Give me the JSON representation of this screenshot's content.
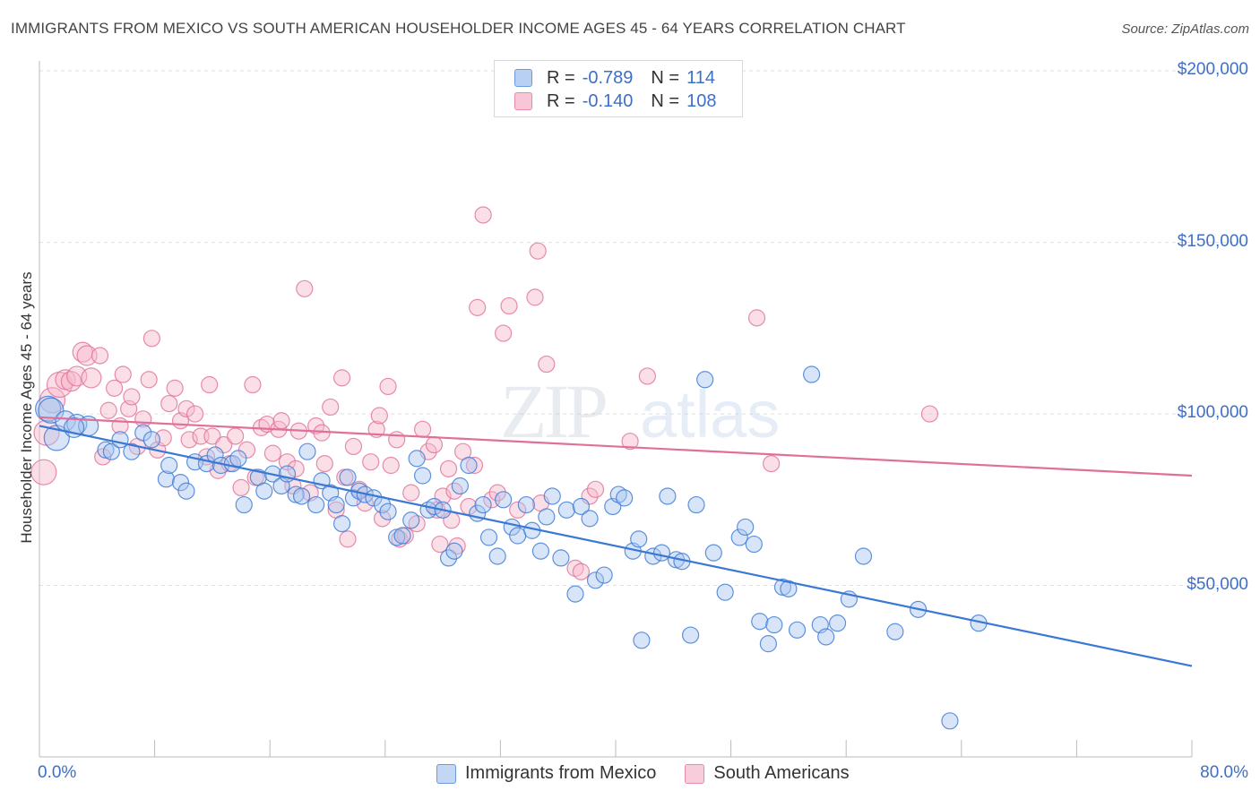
{
  "header": {
    "title": "IMMIGRANTS FROM MEXICO VS SOUTH AMERICAN HOUSEHOLDER INCOME AGES 45 - 64 YEARS CORRELATION CHART",
    "source": "Source: ZipAtlas.com"
  },
  "watermark": {
    "zip": "ZIP",
    "atlas": "atlas"
  },
  "legend": {
    "rows": [
      {
        "r_label": "R =",
        "r_value": "-0.789",
        "n_label": "N =",
        "n_value": "114",
        "color": "#a9c6f0",
        "border": "#6c9ade"
      },
      {
        "r_label": "R =",
        "r_value": "-0.140",
        "n_label": "N =",
        "n_value": "108",
        "color": "#f6b8ca",
        "border": "#e88aa8"
      }
    ]
  },
  "bottom_legend": [
    {
      "label": "Immigrants from Mexico",
      "color": "#c3d6f3",
      "border": "#6c9ade"
    },
    {
      "label": "South Americans",
      "color": "#f8cddb",
      "border": "#e88aa8"
    }
  ],
  "colors": {
    "blue": "#3a78d4",
    "pink": "#e0709a",
    "blue_fill": "#a9c6f0",
    "pink_fill": "#f6b8ca",
    "tick_text": "#3d6fc9",
    "grid": "#e0e0e0"
  },
  "chart_data": {
    "type": "scatter",
    "title": "IMMIGRANTS FROM MEXICO VS SOUTH AMERICAN HOUSEHOLDER INCOME AGES 45 - 64 YEARS CORRELATION CHART",
    "xlabel": "",
    "ylabel": "Householder Income Ages 45 - 64 years",
    "xlim": [
      0,
      80
    ],
    "ylim": [
      0,
      205000
    ],
    "x_tick_labels": [
      "0.0%",
      "80.0%"
    ],
    "y_tick_labels": [
      "$200,000",
      "$150,000",
      "$100,000",
      "$50,000"
    ],
    "y_ticks": [
      200000,
      150000,
      100000,
      50000
    ],
    "legend_placement": "top-center",
    "grid": true,
    "series": [
      {
        "name": "Immigrants from Mexico",
        "r": -0.789,
        "n": 114,
        "trend": [
          [
            0,
            96500
          ],
          [
            80,
            26500
          ]
        ],
        "points": [
          [
            0.6,
            101500
          ],
          [
            0.8,
            101000
          ],
          [
            1.2,
            93000
          ],
          [
            1.8,
            98000
          ],
          [
            2.6,
            97000
          ],
          [
            3.4,
            96500
          ],
          [
            4.6,
            89500
          ],
          [
            5.0,
            89000
          ],
          [
            5.6,
            92500
          ],
          [
            6.4,
            89000
          ],
          [
            7.2,
            94500
          ],
          [
            7.8,
            92500
          ],
          [
            8.8,
            81000
          ],
          [
            9.0,
            85000
          ],
          [
            9.8,
            80000
          ],
          [
            10.2,
            77500
          ],
          [
            10.8,
            86000
          ],
          [
            11.6,
            85500
          ],
          [
            12.2,
            88000
          ],
          [
            12.6,
            85000
          ],
          [
            13.4,
            85500
          ],
          [
            13.8,
            87000
          ],
          [
            14.2,
            73500
          ],
          [
            15.2,
            81500
          ],
          [
            15.6,
            77500
          ],
          [
            16.2,
            82500
          ],
          [
            16.8,
            79000
          ],
          [
            17.2,
            82500
          ],
          [
            17.8,
            76500
          ],
          [
            18.2,
            76000
          ],
          [
            18.6,
            89000
          ],
          [
            19.2,
            73500
          ],
          [
            19.6,
            80500
          ],
          [
            20.2,
            77000
          ],
          [
            20.6,
            73500
          ],
          [
            21.0,
            68000
          ],
          [
            21.4,
            81500
          ],
          [
            21.8,
            75500
          ],
          [
            22.2,
            77500
          ],
          [
            22.6,
            76500
          ],
          [
            23.2,
            75500
          ],
          [
            23.8,
            73500
          ],
          [
            24.2,
            71500
          ],
          [
            24.8,
            64000
          ],
          [
            25.2,
            64500
          ],
          [
            25.8,
            69000
          ],
          [
            26.2,
            87000
          ],
          [
            26.6,
            82000
          ],
          [
            27.0,
            72000
          ],
          [
            27.4,
            73000
          ],
          [
            28.0,
            72000
          ],
          [
            28.4,
            58000
          ],
          [
            28.8,
            60000
          ],
          [
            29.2,
            79000
          ],
          [
            29.8,
            85000
          ],
          [
            30.4,
            71000
          ],
          [
            30.8,
            73500
          ],
          [
            31.2,
            64000
          ],
          [
            31.8,
            58500
          ],
          [
            32.2,
            75000
          ],
          [
            32.8,
            67000
          ],
          [
            33.2,
            64500
          ],
          [
            33.8,
            73500
          ],
          [
            34.2,
            66000
          ],
          [
            34.8,
            60000
          ],
          [
            35.2,
            70000
          ],
          [
            35.6,
            76000
          ],
          [
            36.2,
            58000
          ],
          [
            36.6,
            72000
          ],
          [
            37.2,
            47500
          ],
          [
            37.6,
            73000
          ],
          [
            38.2,
            69500
          ],
          [
            38.6,
            51500
          ],
          [
            39.2,
            53000
          ],
          [
            39.8,
            73000
          ],
          [
            40.2,
            76500
          ],
          [
            40.6,
            75500
          ],
          [
            41.2,
            60000
          ],
          [
            41.6,
            63500
          ],
          [
            41.8,
            34000
          ],
          [
            42.6,
            58500
          ],
          [
            43.2,
            59500
          ],
          [
            43.6,
            76000
          ],
          [
            44.2,
            57500
          ],
          [
            44.6,
            57000
          ],
          [
            45.2,
            35500
          ],
          [
            45.6,
            73500
          ],
          [
            46.2,
            110000
          ],
          [
            46.8,
            59500
          ],
          [
            47.6,
            48000
          ],
          [
            48.6,
            64000
          ],
          [
            49.0,
            67000
          ],
          [
            49.6,
            62000
          ],
          [
            50.0,
            39500
          ],
          [
            50.6,
            33000
          ],
          [
            51.0,
            38500
          ],
          [
            51.6,
            49500
          ],
          [
            52.0,
            49000
          ],
          [
            52.6,
            37000
          ],
          [
            53.6,
            111500
          ],
          [
            54.2,
            38500
          ],
          [
            54.6,
            35000
          ],
          [
            55.4,
            39000
          ],
          [
            56.2,
            46000
          ],
          [
            57.2,
            58500
          ],
          [
            59.4,
            36500
          ],
          [
            61.0,
            43000
          ],
          [
            63.2,
            10500
          ],
          [
            65.2,
            39000
          ],
          [
            2.4,
            96000
          ]
        ]
      },
      {
        "name": "South Americans",
        "r": -0.14,
        "n": 108,
        "trend": [
          [
            0,
            99000
          ],
          [
            80,
            82000
          ]
        ],
        "points": [
          [
            0.3,
            83000
          ],
          [
            0.5,
            94500
          ],
          [
            0.9,
            104000
          ],
          [
            1.4,
            108500
          ],
          [
            1.8,
            110000
          ],
          [
            2.2,
            109500
          ],
          [
            2.6,
            111000
          ],
          [
            3.0,
            118000
          ],
          [
            3.3,
            117000
          ],
          [
            3.6,
            110500
          ],
          [
            4.2,
            117000
          ],
          [
            4.4,
            87500
          ],
          [
            4.8,
            101000
          ],
          [
            5.2,
            107500
          ],
          [
            5.6,
            96500
          ],
          [
            5.8,
            111500
          ],
          [
            6.2,
            101500
          ],
          [
            6.4,
            105000
          ],
          [
            6.8,
            90500
          ],
          [
            7.2,
            98500
          ],
          [
            7.6,
            110000
          ],
          [
            7.8,
            122000
          ],
          [
            8.2,
            89500
          ],
          [
            8.6,
            93000
          ],
          [
            9.0,
            103000
          ],
          [
            9.4,
            107500
          ],
          [
            9.8,
            98000
          ],
          [
            10.2,
            101500
          ],
          [
            10.4,
            92500
          ],
          [
            10.8,
            100000
          ],
          [
            11.2,
            93500
          ],
          [
            11.6,
            87500
          ],
          [
            11.8,
            108500
          ],
          [
            12.0,
            93500
          ],
          [
            12.4,
            83500
          ],
          [
            12.8,
            91000
          ],
          [
            13.2,
            85500
          ],
          [
            13.6,
            93500
          ],
          [
            14.0,
            78500
          ],
          [
            14.4,
            89500
          ],
          [
            14.8,
            108500
          ],
          [
            15.0,
            81500
          ],
          [
            15.4,
            96000
          ],
          [
            15.8,
            97000
          ],
          [
            16.2,
            88500
          ],
          [
            16.6,
            95500
          ],
          [
            16.8,
            98000
          ],
          [
            17.2,
            86000
          ],
          [
            17.6,
            79000
          ],
          [
            17.8,
            84000
          ],
          [
            18.0,
            95000
          ],
          [
            18.4,
            136500
          ],
          [
            18.8,
            77000
          ],
          [
            19.2,
            96500
          ],
          [
            19.6,
            94500
          ],
          [
            19.8,
            85500
          ],
          [
            20.2,
            102000
          ],
          [
            20.6,
            72000
          ],
          [
            21.0,
            110500
          ],
          [
            21.2,
            81500
          ],
          [
            21.4,
            63500
          ],
          [
            21.8,
            90500
          ],
          [
            22.2,
            78000
          ],
          [
            22.6,
            74000
          ],
          [
            23.0,
            86000
          ],
          [
            23.4,
            95500
          ],
          [
            23.6,
            99500
          ],
          [
            23.8,
            69500
          ],
          [
            24.2,
            108000
          ],
          [
            24.4,
            85000
          ],
          [
            24.8,
            92500
          ],
          [
            25.0,
            63500
          ],
          [
            25.4,
            64500
          ],
          [
            25.8,
            77000
          ],
          [
            26.2,
            68000
          ],
          [
            26.6,
            95500
          ],
          [
            27.0,
            89000
          ],
          [
            27.4,
            91000
          ],
          [
            27.6,
            72000
          ],
          [
            28.0,
            76000
          ],
          [
            28.4,
            84000
          ],
          [
            28.6,
            69000
          ],
          [
            28.8,
            77500
          ],
          [
            29.0,
            61500
          ],
          [
            29.4,
            89000
          ],
          [
            29.8,
            73000
          ],
          [
            30.2,
            85000
          ],
          [
            30.4,
            131000
          ],
          [
            30.8,
            158000
          ],
          [
            31.4,
            75000
          ],
          [
            31.8,
            77000
          ],
          [
            32.2,
            123500
          ],
          [
            32.6,
            131500
          ],
          [
            33.2,
            72000
          ],
          [
            34.4,
            134000
          ],
          [
            34.6,
            147500
          ],
          [
            34.8,
            74000
          ],
          [
            35.2,
            114500
          ],
          [
            37.2,
            55000
          ],
          [
            37.6,
            54000
          ],
          [
            38.2,
            76000
          ],
          [
            38.6,
            78000
          ],
          [
            41.0,
            92000
          ],
          [
            42.2,
            111000
          ],
          [
            49.8,
            128000
          ],
          [
            50.8,
            85500
          ],
          [
            61.8,
            100000
          ],
          [
            27.8,
            62000
          ]
        ]
      }
    ]
  }
}
